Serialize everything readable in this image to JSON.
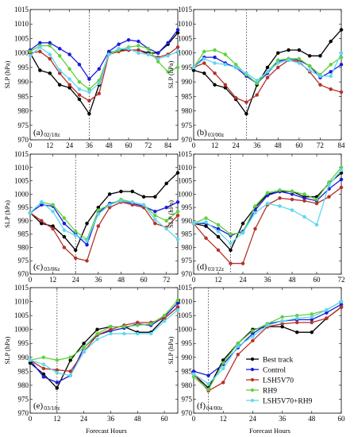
{
  "figure": {
    "ylabel": "SLP (hPa)",
    "xlabel": "Forecast Hours"
  },
  "series_styles": [
    {
      "name": "Best track",
      "color": "#000000"
    },
    {
      "name": "Control",
      "color": "#1a1adf"
    },
    {
      "name": "LSH5V70",
      "color": "#b5322a"
    },
    {
      "name": "RH9",
      "color": "#5fd13f"
    },
    {
      "name": "LSH5V70+RH9",
      "color": "#5fd7f0"
    }
  ],
  "legend": {
    "placement": "lower-right of panel (f)",
    "entries": [
      "Best track",
      "Control",
      "LSH5V70",
      "RH9",
      "LSH5V70+RH9"
    ]
  },
  "chart_data": [
    {
      "type": "line",
      "panel": "(a)",
      "init": "02/18z",
      "xlim": [
        0,
        90
      ],
      "ylim": [
        970,
        1015
      ],
      "xticks": [
        0,
        12,
        24,
        36,
        48,
        60,
        72,
        84
      ],
      "yticks": [
        970,
        975,
        980,
        985,
        990,
        995,
        1000,
        1005,
        1010,
        1015
      ],
      "vline": 36,
      "x": [
        0,
        6,
        12,
        18,
        24,
        30,
        36,
        42,
        48,
        54,
        60,
        66,
        72,
        78,
        84,
        90
      ],
      "series": [
        {
          "name": "Best track",
          "values": [
            1000,
            994,
            993,
            989,
            988,
            984,
            979,
            989,
            1000,
            1001,
            1001,
            1001,
            1000,
            1000,
            1003,
            1007
          ]
        },
        {
          "name": "Control",
          "values": [
            1001,
            1003.5,
            1003.5,
            1001.5,
            999.5,
            996,
            991,
            994.5,
            1000.5,
            1003,
            1004.5,
            1004,
            1001.5,
            1000,
            1003.5,
            1008
          ]
        },
        {
          "name": "LSH5V70",
          "values": [
            1000,
            1000.5,
            998,
            993,
            989,
            985.5,
            983.5,
            986,
            999.5,
            1000.5,
            1001,
            1001,
            999.5,
            998.5,
            999.5,
            1002
          ]
        },
        {
          "name": "RH9",
          "values": [
            1000.5,
            1002.5,
            1002.5,
            999,
            994.5,
            990,
            987.5,
            990.5,
            999.5,
            1001,
            1002,
            1002.5,
            1001.5,
            997,
            993.5,
            995
          ]
        },
        {
          "name": "LSH5V70+RH9",
          "values": [
            999,
            1002,
            999.5,
            994,
            991,
            987.5,
            986.5,
            989.5,
            999.5,
            1001.5,
            1001.5,
            1000,
            999.5,
            998,
            999,
            1000.5
          ]
        }
      ]
    },
    {
      "type": "line",
      "panel": "(b)",
      "init": "03/00z",
      "xlim": [
        0,
        84
      ],
      "ylim": [
        970,
        1015
      ],
      "xticks": [
        0,
        12,
        24,
        36,
        48,
        60,
        72,
        84
      ],
      "yticks": [
        970,
        975,
        980,
        985,
        990,
        995,
        1000,
        1005,
        1010,
        1015
      ],
      "vline": 30,
      "x": [
        0,
        6,
        12,
        18,
        24,
        30,
        36,
        42,
        48,
        54,
        60,
        66,
        72,
        78,
        84
      ],
      "series": [
        {
          "name": "Best track",
          "values": [
            994,
            993,
            989,
            988,
            984,
            979,
            989,
            995,
            1000,
            1001,
            1001,
            999,
            999,
            1004,
            1008
          ]
        },
        {
          "name": "Control",
          "values": [
            995,
            998.5,
            998.5,
            996.5,
            995,
            992,
            989.5,
            993,
            997,
            998,
            997.5,
            995.5,
            991.5,
            993.5,
            996
          ]
        },
        {
          "name": "LSH5V70",
          "values": [
            995,
            996.5,
            993,
            989,
            984.5,
            983,
            985.5,
            991.5,
            995,
            997.5,
            997,
            993.5,
            989,
            987.5,
            986.5
          ]
        },
        {
          "name": "RH9",
          "values": [
            995,
            1000.5,
            1001,
            999.5,
            996,
            992.5,
            989.5,
            993.5,
            997.5,
            998,
            998,
            995.5,
            992.5,
            996,
            998.5
          ]
        },
        {
          "name": "LSH5V70+RH9",
          "values": [
            995,
            998,
            996.5,
            996,
            995,
            993,
            990.5,
            993.5,
            996.5,
            997.5,
            996.5,
            994,
            992,
            992,
            1000
          ]
        }
      ]
    },
    {
      "type": "line",
      "panel": "(c)",
      "init": "03/06z",
      "xlim": [
        0,
        78
      ],
      "ylim": [
        970,
        1015
      ],
      "xticks": [
        0,
        12,
        24,
        36,
        48,
        60,
        72
      ],
      "yticks": [
        970,
        975,
        980,
        985,
        990,
        995,
        1000,
        1005,
        1010,
        1015
      ],
      "vline": 24,
      "x": [
        0,
        6,
        12,
        18,
        24,
        30,
        36,
        42,
        48,
        54,
        60,
        66,
        72,
        78
      ],
      "series": [
        {
          "name": "Best track",
          "values": [
            993,
            989,
            988,
            984,
            979,
            989,
            995,
            1000,
            1001,
            1001,
            999,
            999,
            1004,
            1008
          ]
        },
        {
          "name": "Control",
          "values": [
            993,
            996,
            995.5,
            989,
            985,
            981,
            993,
            996.5,
            997.5,
            996.5,
            995.5,
            993.5,
            995,
            997
          ]
        },
        {
          "name": "LSH5V70",
          "values": [
            993,
            990,
            987,
            980,
            976,
            975,
            988,
            995,
            997,
            996,
            995,
            989,
            987.5,
            992
          ]
        },
        {
          "name": "RH9",
          "values": [
            993,
            997,
            996,
            991,
            986,
            983,
            994,
            996,
            998,
            997,
            996,
            992,
            990,
            993.5
          ]
        },
        {
          "name": "LSH5V70+RH9",
          "values": [
            993,
            997,
            993.5,
            986.5,
            984.5,
            982.5,
            992.5,
            996,
            997.5,
            997,
            996,
            990.5,
            987,
            983
          ]
        }
      ]
    },
    {
      "type": "line",
      "panel": "(d)",
      "init": "03/12z",
      "xlim": [
        0,
        72
      ],
      "ylim": [
        970,
        1015
      ],
      "xticks": [
        0,
        12,
        24,
        36,
        48,
        60,
        72
      ],
      "yticks": [
        970,
        975,
        980,
        985,
        990,
        995,
        1000,
        1005,
        1010,
        1015
      ],
      "vline": 18,
      "x": [
        0,
        6,
        12,
        18,
        24,
        30,
        36,
        42,
        48,
        54,
        60,
        66,
        72
      ],
      "series": [
        {
          "name": "Best track",
          "values": [
            989,
            988,
            984,
            979,
            989,
            995,
            1000,
            1001,
            1001,
            999,
            999,
            1004,
            1008
          ]
        },
        {
          "name": "Control",
          "values": [
            989,
            989,
            987,
            984.5,
            986,
            994,
            999.5,
            1001,
            1000,
            998.5,
            997.5,
            1002,
            1005.5
          ]
        },
        {
          "name": "LSH5V70",
          "values": [
            989,
            983.5,
            979,
            974,
            974,
            987,
            996,
            998.5,
            998,
            997.5,
            996.5,
            999,
            1002.5
          ]
        },
        {
          "name": "RH9",
          "values": [
            989,
            991,
            988.5,
            985,
            985.5,
            995.5,
            1000.5,
            1001.5,
            1001,
            1000,
            998,
            1004.5,
            1010
          ]
        },
        {
          "name": "LSH5V70+RH9",
          "values": [
            989,
            989.5,
            986,
            981.5,
            985.5,
            993,
            996.5,
            995.5,
            994,
            991.5,
            988.5,
            1003.5,
            1009
          ]
        }
      ]
    },
    {
      "type": "line",
      "panel": "(e)",
      "init": "03/18z",
      "xlim": [
        0,
        66
      ],
      "ylim": [
        970,
        1015
      ],
      "xticks": [
        0,
        12,
        24,
        36,
        48,
        60
      ],
      "yticks": [
        970,
        975,
        980,
        985,
        990,
        995,
        1000,
        1005,
        1010,
        1015
      ],
      "vline": 12,
      "x": [
        0,
        6,
        12,
        18,
        24,
        30,
        36,
        42,
        48,
        54,
        60,
        66
      ],
      "series": [
        {
          "name": "Best track",
          "values": [
            988,
            984,
            979,
            989,
            995,
            1000,
            1001,
            1001,
            999,
            999,
            1004,
            1008
          ]
        },
        {
          "name": "Control",
          "values": [
            989,
            983,
            981,
            983.5,
            993.5,
            998,
            999.5,
            1000.5,
            1002,
            1001.5,
            1004.5,
            1009.5
          ]
        },
        {
          "name": "LSH5V70",
          "values": [
            989,
            986,
            985.5,
            985,
            992,
            998,
            1000,
            1001.5,
            1002.5,
            1002.5,
            1004,
            1008
          ]
        },
        {
          "name": "RH9",
          "values": [
            989,
            990,
            989,
            990,
            993.5,
            998.5,
            1001,
            1001,
            1001.5,
            1002,
            1005,
            1010.5
          ]
        },
        {
          "name": "LSH5V70+RH9",
          "values": [
            989,
            987.5,
            984.5,
            983.5,
            992,
            996.5,
            998.5,
            998.5,
            998.5,
            998.5,
            1003,
            1007
          ]
        }
      ]
    },
    {
      "type": "line",
      "panel": "(f)",
      "init": "04/00z",
      "xlim": [
        0,
        60
      ],
      "ylim": [
        970,
        1015
      ],
      "xticks": [
        0,
        12,
        24,
        36,
        48,
        60
      ],
      "yticks": [
        970,
        975,
        980,
        985,
        990,
        995,
        1000,
        1005,
        1010,
        1015
      ],
      "vline": 6,
      "x": [
        0,
        6,
        12,
        18,
        24,
        30,
        36,
        42,
        48,
        54,
        60
      ],
      "series": [
        {
          "name": "Best track",
          "values": [
            984,
            979,
            989,
            995,
            1000,
            1001,
            1001,
            999,
            999,
            1004,
            1008
          ]
        },
        {
          "name": "Control",
          "values": [
            985,
            983.5,
            987.5,
            993.5,
            998.5,
            1002,
            1003,
            1003.5,
            1003.5,
            1006,
            1009
          ]
        },
        {
          "name": "LSH5V70",
          "values": [
            984,
            978,
            981,
            991,
            996,
            1001,
            1002,
            1002.5,
            1002.5,
            1004,
            1008
          ]
        },
        {
          "name": "RH9",
          "values": [
            983,
            978.5,
            988,
            995,
            999.5,
            1002,
            1004.5,
            1005,
            1005.5,
            1007,
            1010
          ]
        },
        {
          "name": "LSH5V70+RH9",
          "values": [
            984,
            980.5,
            986,
            994,
            997.5,
            1001.5,
            1003,
            1004,
            1004.5,
            1007,
            1010
          ]
        }
      ]
    }
  ]
}
